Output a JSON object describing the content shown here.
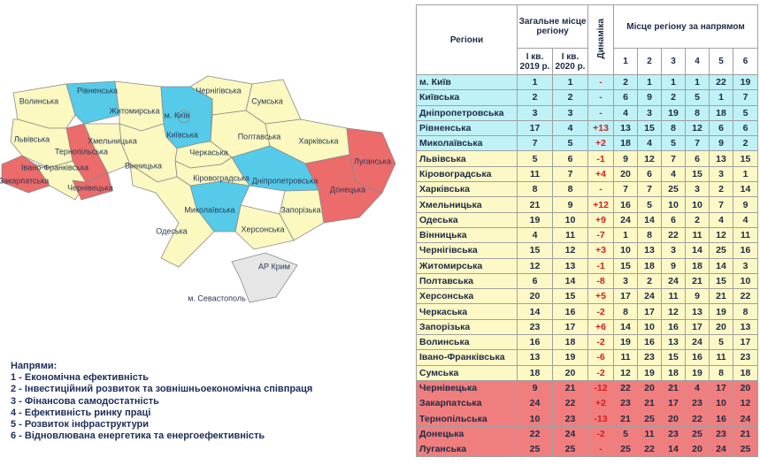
{
  "map": {
    "labels": [
      "Волинська",
      "Рівненська",
      "Житомирська",
      "Чернігівська",
      "Сумська",
      "м. Київ",
      "Київська",
      "Полтавська",
      "Харківська",
      "Луганська",
      "Львівська",
      "Тернопільська",
      "Хмельницька",
      "Вінницька",
      "Черкаська",
      "Кіровоградська",
      "Дніпропетровська",
      "Донецька",
      "Івано-Франківська",
      "Закарпатська",
      "Чернівецька",
      "Миколаївська",
      "Запорізька",
      "Одеська",
      "Херсонська",
      "АР Крим",
      "м. Севастополь"
    ]
  },
  "table": {
    "headers": {
      "region": "Регіони",
      "overall": "Загальне місце регіону",
      "q2019": "І кв. 2019 р.",
      "q2020": "І кв. 2020 р.",
      "dynamics": "Динаміка",
      "directions": "Місце регіону за напрямом",
      "direction_numbers": [
        1,
        2,
        3,
        4,
        5,
        6
      ]
    },
    "rows": [
      {
        "region": "м. Київ",
        "rank_2019": 1,
        "rank_2020": 1,
        "dynamics": "-",
        "directions": [
          2,
          1,
          1,
          1,
          22,
          19
        ],
        "color": "#bff2f6"
      },
      {
        "region": "Київська",
        "rank_2019": 2,
        "rank_2020": 2,
        "dynamics": "-",
        "directions": [
          6,
          9,
          2,
          5,
          1,
          7
        ],
        "color": "#bff2f6"
      },
      {
        "region": "Дніпропетровська",
        "rank_2019": 3,
        "rank_2020": 3,
        "dynamics": "-",
        "directions": [
          4,
          3,
          19,
          8,
          18,
          5
        ],
        "color": "#bff2f6"
      },
      {
        "region": "Рівненська",
        "rank_2019": 17,
        "rank_2020": 4,
        "dynamics": "+13",
        "directions": [
          13,
          15,
          8,
          12,
          6,
          6
        ],
        "color": "#bff2f6"
      },
      {
        "region": "Миколаївська",
        "rank_2019": 7,
        "rank_2020": 5,
        "dynamics": "+2",
        "directions": [
          18,
          4,
          5,
          7,
          9,
          2
        ],
        "color": "#bff2f6"
      },
      {
        "region": "Львівська",
        "rank_2019": 5,
        "rank_2020": 6,
        "dynamics": "-1",
        "directions": [
          9,
          12,
          7,
          6,
          13,
          15
        ],
        "color": "#fdf9c6"
      },
      {
        "region": "Кіровоградська",
        "rank_2019": 11,
        "rank_2020": 7,
        "dynamics": "+4",
        "directions": [
          20,
          6,
          4,
          15,
          3,
          1
        ],
        "color": "#fdf9c6"
      },
      {
        "region": "Харківська",
        "rank_2019": 8,
        "rank_2020": 8,
        "dynamics": "-",
        "directions": [
          7,
          7,
          25,
          3,
          2,
          14
        ],
        "color": "#fdf9c6"
      },
      {
        "region": "Хмельницька",
        "rank_2019": 21,
        "rank_2020": 9,
        "dynamics": "+12",
        "directions": [
          16,
          5,
          10,
          10,
          7,
          9
        ],
        "color": "#fdf9c6"
      },
      {
        "region": "Одеська",
        "rank_2019": 19,
        "rank_2020": 10,
        "dynamics": "+9",
        "directions": [
          24,
          14,
          6,
          2,
          4,
          4
        ],
        "color": "#fdf9c6"
      },
      {
        "region": "Вінницька",
        "rank_2019": 4,
        "rank_2020": 11,
        "dynamics": "-7",
        "directions": [
          1,
          8,
          22,
          11,
          12,
          11
        ],
        "color": "#fdf9c6"
      },
      {
        "region": "Чернігівська",
        "rank_2019": 15,
        "rank_2020": 12,
        "dynamics": "+3",
        "directions": [
          10,
          13,
          3,
          14,
          25,
          16
        ],
        "color": "#fdf9c6"
      },
      {
        "region": "Житомирська",
        "rank_2019": 12,
        "rank_2020": 13,
        "dynamics": "-1",
        "directions": [
          15,
          18,
          9,
          18,
          14,
          3
        ],
        "color": "#fdf9c6"
      },
      {
        "region": "Полтавська",
        "rank_2019": 6,
        "rank_2020": 14,
        "dynamics": "-8",
        "directions": [
          3,
          2,
          24,
          21,
          15,
          10
        ],
        "color": "#fdf9c6"
      },
      {
        "region": "Херсонська",
        "rank_2019": 20,
        "rank_2020": 15,
        "dynamics": "+5",
        "directions": [
          17,
          24,
          11,
          9,
          21,
          22
        ],
        "color": "#fdf9c6"
      },
      {
        "region": "Черкаська",
        "rank_2019": 14,
        "rank_2020": 16,
        "dynamics": "-2",
        "directions": [
          8,
          17,
          12,
          13,
          19,
          8
        ],
        "color": "#fdf9c6"
      },
      {
        "region": "Запорізька",
        "rank_2019": 23,
        "rank_2020": 17,
        "dynamics": "+6",
        "directions": [
          14,
          10,
          16,
          17,
          20,
          13
        ],
        "color": "#fdf9c6"
      },
      {
        "region": "Волинська",
        "rank_2019": 16,
        "rank_2020": 18,
        "dynamics": "-2",
        "directions": [
          19,
          16,
          13,
          24,
          5,
          17
        ],
        "color": "#fdf9c6"
      },
      {
        "region": "Івано-Франківська",
        "rank_2019": 13,
        "rank_2020": 19,
        "dynamics": "-6",
        "directions": [
          11,
          23,
          15,
          16,
          11,
          23
        ],
        "color": "#fdf9c6"
      },
      {
        "region": "Сумська",
        "rank_2019": 18,
        "rank_2020": 20,
        "dynamics": "-2",
        "directions": [
          12,
          19,
          18,
          19,
          8,
          18
        ],
        "color": "#fdf9c6"
      },
      {
        "region": "Чернівецька",
        "rank_2019": 9,
        "rank_2020": 21,
        "dynamics": "-12",
        "directions": [
          22,
          20,
          21,
          4,
          17,
          20
        ],
        "color": "#f07e7e"
      },
      {
        "region": "Закарпатська",
        "rank_2019": 24,
        "rank_2020": 22,
        "dynamics": "+2",
        "directions": [
          23,
          21,
          17,
          23,
          10,
          12
        ],
        "color": "#f07e7e"
      },
      {
        "region": "Тернопільська",
        "rank_2019": 10,
        "rank_2020": 23,
        "dynamics": "-13",
        "directions": [
          21,
          25,
          20,
          22,
          16,
          24
        ],
        "color": "#f07e7e"
      },
      {
        "region": "Донецька",
        "rank_2019": 22,
        "rank_2020": 24,
        "dynamics": "-2",
        "directions": [
          5,
          11,
          23,
          25,
          23,
          21
        ],
        "color": "#f07e7e"
      },
      {
        "region": "Луганська",
        "rank_2019": 25,
        "rank_2020": 25,
        "dynamics": "-",
        "directions": [
          25,
          22,
          14,
          20,
          24,
          25
        ],
        "color": "#f07e7e"
      }
    ]
  },
  "legend": {
    "title": "Напрями:",
    "items": [
      "1 - Економічна ефективність",
      "2 - Інвестиційний розвиток та зовнішньоекономічна співпраця",
      "3 - Фінансова самодостатність",
      "4 - Ефективність ринку праці",
      "5 - Розвиток інфраструктури",
      "6 - Відновлювана енергетика та енергоефективність"
    ]
  }
}
